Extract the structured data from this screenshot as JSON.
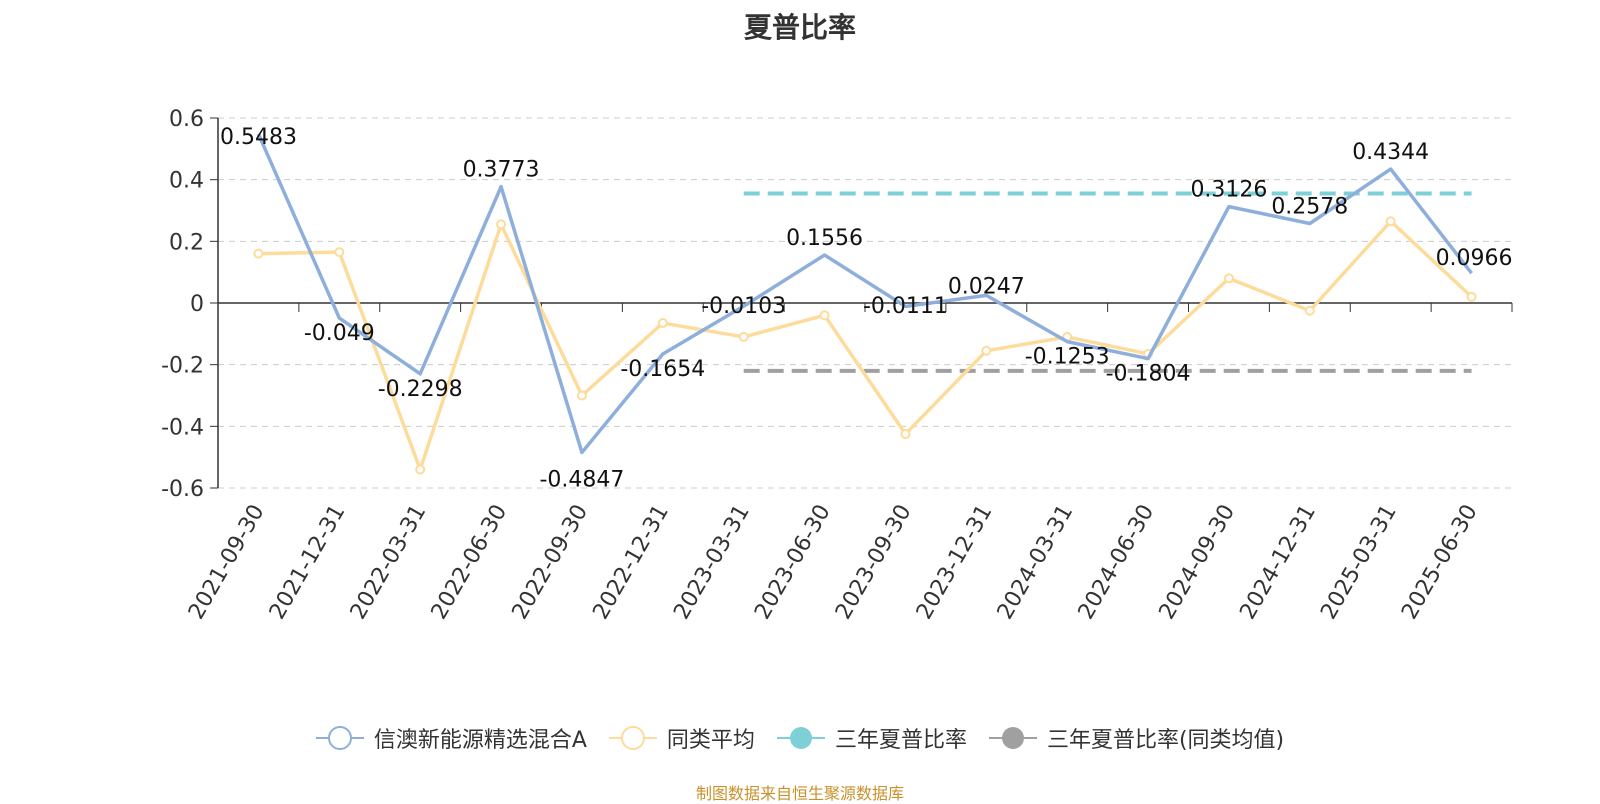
{
  "title": "夏普比率",
  "source_note": "制图数据来自恒生聚源数据库",
  "legend": [
    {
      "label": "信澳新能源精选混合A",
      "color": "#8eaedb",
      "marker": "hollow"
    },
    {
      "label": "同类平均",
      "color": "#fddc9b",
      "marker": "hollow"
    },
    {
      "label": "三年夏普比率",
      "color": "#7dd0d6",
      "marker": "filled"
    },
    {
      "label": "三年夏普比率(同类均值)",
      "color": "#a0a0a0",
      "marker": "filled"
    }
  ],
  "chart_data": {
    "type": "line",
    "title": "夏普比率",
    "categories": [
      "2021-09-30",
      "2021-12-31",
      "2022-03-31",
      "2022-06-30",
      "2022-09-30",
      "2022-12-31",
      "2023-03-31",
      "2023-06-30",
      "2023-09-30",
      "2023-12-31",
      "2024-03-31",
      "2024-06-30",
      "2024-09-30",
      "2024-12-31",
      "2025-03-31",
      "2025-06-30"
    ],
    "ylim": [
      -0.6,
      0.6
    ],
    "yticks": [
      0.6,
      0.4,
      0.2,
      0,
      -0.2,
      -0.4,
      -0.6
    ],
    "ytick_labels": [
      "0.6",
      "0.4",
      "0.2",
      "0",
      "-0.2",
      "-0.4",
      "-0.6"
    ],
    "grid": true,
    "legend_position": "bottom",
    "series": [
      {
        "name": "信澳新能源精选混合A",
        "color": "#8eaedb",
        "values": [
          0.5483,
          -0.049,
          -0.2298,
          0.3773,
          -0.4847,
          -0.1654,
          -0.0103,
          0.1556,
          -0.0111,
          0.0247,
          -0.1253,
          -0.1804,
          0.3126,
          0.2578,
          0.4344,
          0.0966
        ],
        "labels": [
          "0.5483",
          "-0.049",
          "-0.2298",
          "0.3773",
          "-0.4847",
          "-0.1654",
          "-0.0103",
          "0.1556",
          "-0.0111",
          "0.0247",
          "-0.1253",
          "-0.1804",
          "0.3126",
          "0.2578",
          "0.4344",
          "0.0966"
        ]
      },
      {
        "name": "同类平均",
        "color": "#fddc9b",
        "values": [
          0.16,
          0.165,
          -0.54,
          0.255,
          -0.3,
          -0.065,
          -0.11,
          -0.04,
          -0.425,
          -0.155,
          -0.11,
          -0.165,
          0.08,
          -0.025,
          0.265,
          0.02
        ]
      }
    ],
    "reference_lines": [
      {
        "name": "三年夏普比率",
        "color": "#7dd0d6",
        "value": 0.355,
        "from": "2023-03-31",
        "to": "2025-06-30"
      },
      {
        "name": "三年夏普比率(同类均值)",
        "color": "#a0a0a0",
        "value": -0.22,
        "from": "2023-03-31",
        "to": "2025-06-30"
      }
    ]
  }
}
